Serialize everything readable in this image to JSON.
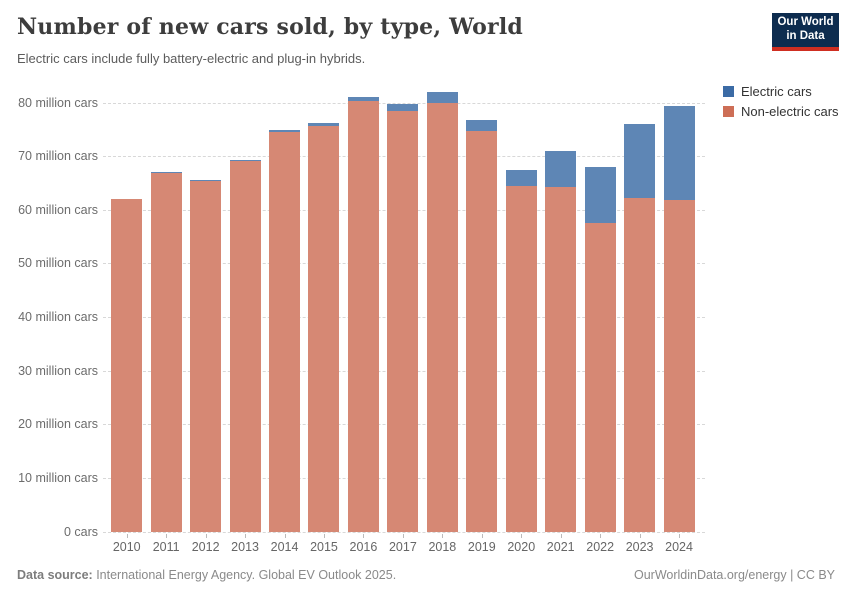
{
  "header": {
    "title": "Number of new cars sold, by type, World",
    "subtitle": "Electric cars include fully battery-electric and plug-in hybrids.",
    "logo": {
      "line1": "Our World",
      "line2": "in Data",
      "bg_color": "#0d2c4f",
      "accent_color": "#cf2e21"
    }
  },
  "chart_data": {
    "type": "bar",
    "stacked": true,
    "title": "Number of new cars sold, by type, World",
    "subtitle": "Electric cars include fully battery-electric and plug-in hybrids.",
    "unit": "million cars",
    "categories": [
      "2010",
      "2011",
      "2012",
      "2013",
      "2014",
      "2015",
      "2016",
      "2017",
      "2018",
      "2019",
      "2020",
      "2021",
      "2022",
      "2023",
      "2024"
    ],
    "series": [
      {
        "name": "Electric cars",
        "color": "#3b6ba5",
        "values": [
          0.01,
          0.05,
          0.13,
          0.21,
          0.32,
          0.55,
          0.75,
          1.2,
          2.0,
          2.1,
          3.0,
          6.6,
          10.4,
          13.8,
          17.5
        ]
      },
      {
        "name": "Non-electric cars",
        "color": "#cd6e56",
        "values": [
          62.0,
          66.9,
          65.4,
          69.1,
          74.5,
          75.7,
          80.3,
          78.5,
          79.9,
          74.7,
          64.4,
          64.3,
          57.6,
          62.2,
          61.9
        ]
      }
    ],
    "ylim": [
      0,
      80
    ],
    "ytick_interval": 10,
    "ytick_labels": [
      "0 cars",
      "10 million cars",
      "20 million cars",
      "30 million cars",
      "40 million cars",
      "50 million cars",
      "60 million cars",
      "70 million cars",
      "80 million cars"
    ],
    "grid": "horizontal-dashed",
    "legend_position": "right-top"
  },
  "footer": {
    "source_label": "Data source:",
    "source_text": " International Energy Agency. Global EV Outlook 2025.",
    "credit": "OurWorldinData.org/energy | CC BY"
  }
}
